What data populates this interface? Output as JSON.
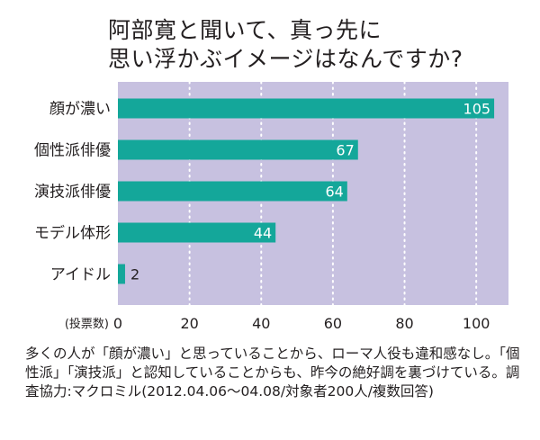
{
  "chart_data": {
    "type": "bar",
    "orientation": "horizontal",
    "title_lines": [
      "阿部寛と聞いて、真っ先に",
      "思い浮かぶイメージはなんですか?"
    ],
    "categories": [
      "顔が濃い",
      "個性派俳優",
      "演技派俳優",
      "モデル体形",
      "アイドル"
    ],
    "values": [
      105,
      67,
      64,
      44,
      2
    ],
    "value_labels": [
      "105",
      "67",
      "64",
      "44",
      "2"
    ],
    "xlabel": "(投票数)",
    "xticks": [
      0,
      20,
      40,
      60,
      80,
      100
    ],
    "xtick_labels": [
      "0",
      "20",
      "40",
      "60",
      "80",
      "100"
    ],
    "xlim": [
      0,
      109
    ],
    "grid": true,
    "colors": {
      "plot_background": "#c7c1e0",
      "bar": "#14a79a",
      "grid": "#ffffff",
      "text": "#231f20"
    }
  },
  "footnote": "多くの人が「顔が濃い」と思っていることから、ローマ人役も違和感なし。「個性派」「演技派」と認知していることからも、昨今の絶好調を裏づけている。調査協力:マクロミル(2012.04.06〜04.08/対象者200人/複数回答)"
}
